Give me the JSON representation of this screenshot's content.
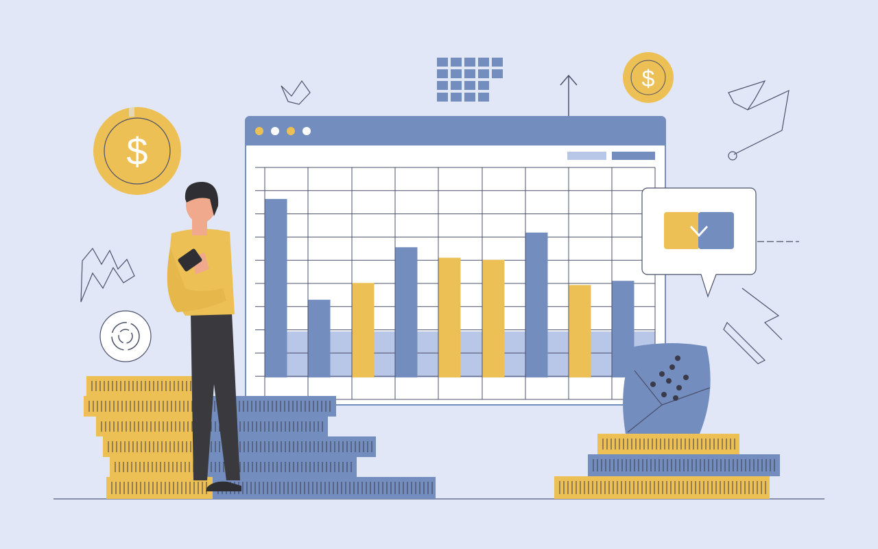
{
  "colors": {
    "background": "#e1e7f6",
    "primary_blue": "#738dbf",
    "accent_yellow": "#ecc055",
    "light_blue": "#b8c6e8",
    "line": "#4a4f6a",
    "skin": "#f0a98c",
    "hair": "#2f2f33",
    "trousers": "#3a3a3e"
  },
  "window": {
    "title_dots": [
      "yellow",
      "white",
      "yellow",
      "white"
    ],
    "legend_swatches": [
      "light_blue",
      "primary_blue"
    ]
  },
  "chart_data": {
    "type": "bar",
    "bars": [
      {
        "color": "primary_blue",
        "level": 0.85
      },
      {
        "color": "primary_blue",
        "level": 0.37
      },
      {
        "color": "accent_yellow",
        "level": 0.45
      },
      {
        "color": "primary_blue",
        "level": 0.62
      },
      {
        "color": "accent_yellow",
        "level": 0.57
      },
      {
        "color": "accent_yellow",
        "level": 0.56
      },
      {
        "color": "primary_blue",
        "level": 0.69
      },
      {
        "color": "accent_yellow",
        "level": 0.44
      },
      {
        "color": "primary_blue",
        "level": 0.46
      }
    ],
    "grid": true
  },
  "icons": {
    "big_coin": "dollar-coin-icon",
    "small_coin": "dollar-coin-icon",
    "dollar_symbol": "$",
    "toggle": "chevron-down-icon",
    "arrow": "arrow-up-icon",
    "target": "target-icon"
  }
}
